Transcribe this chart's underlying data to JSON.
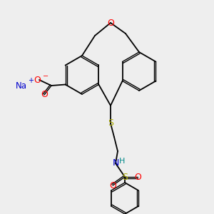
{
  "bg_color": "#eeeeee",
  "colors": {
    "C": "#000000",
    "O": "#ff0000",
    "S_thio": "#aaaa00",
    "S_sulfonyl": "#aaaa00",
    "N": "#0000cc",
    "Na": "#0000cc",
    "H": "#008888",
    "minus": "#ff0000",
    "plus": "#0000cc"
  },
  "lw": 1.3,
  "dlw": 1.0,
  "doff": 2.2
}
